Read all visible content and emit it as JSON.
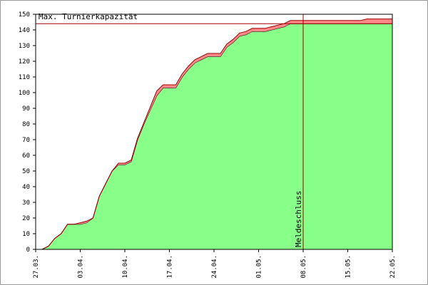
{
  "chart_data": {
    "type": "stacked-area",
    "categories": [
      "27.03.",
      null,
      null,
      null,
      null,
      null,
      null,
      "03.04.",
      null,
      null,
      null,
      null,
      null,
      null,
      "10.04.",
      null,
      null,
      null,
      null,
      null,
      null,
      "17.04.",
      null,
      null,
      null,
      null,
      null,
      null,
      "24.04.",
      null,
      null,
      null,
      null,
      null,
      null,
      "01.05.",
      null,
      null,
      null,
      null,
      null,
      null,
      "08.05.",
      null,
      null,
      null,
      null,
      null,
      null,
      "15.05.",
      null,
      null,
      null,
      null,
      null,
      null,
      "22.05."
    ],
    "series": [
      {
        "color": "#88ff88",
        "line_color": "#000000",
        "values": [
          0,
          0,
          2,
          7,
          10,
          16,
          16,
          16,
          17,
          20,
          34,
          42,
          50,
          54,
          54,
          56,
          70,
          80,
          89,
          98,
          103,
          103,
          103,
          110,
          115,
          119,
          121,
          123,
          123,
          123,
          129,
          132,
          136,
          137,
          139,
          139,
          139,
          140,
          141,
          142,
          144,
          144,
          144,
          144,
          144,
          144,
          144,
          144,
          144,
          144,
          144,
          144,
          144,
          144,
          144,
          144,
          144
        ]
      },
      {
        "color": "#ff8888",
        "line_color": "#a00000",
        "values": [
          0,
          0,
          0,
          0,
          0,
          0,
          0,
          1,
          1,
          0,
          0,
          0,
          0,
          1,
          1,
          1,
          1,
          1,
          2,
          3,
          2,
          2,
          2,
          2,
          2,
          2,
          2,
          2,
          2,
          2,
          2,
          2,
          2,
          2,
          2,
          2,
          2,
          2,
          2,
          2,
          2,
          2,
          2,
          2,
          2,
          2,
          2,
          2,
          2,
          2,
          2,
          2,
          3,
          3,
          3,
          3,
          3
        ]
      }
    ],
    "ylim": [
      0,
      150
    ],
    "yticks": [
      0,
      10,
      20,
      30,
      40,
      50,
      60,
      70,
      80,
      90,
      100,
      110,
      120,
      130,
      140,
      150
    ],
    "capacity": {
      "label": "Max. Turnierkapazität",
      "value": 144,
      "color": "#a00000"
    },
    "deadline": {
      "label": "Meldeschluss",
      "x": "08.05.",
      "color": "#a00000"
    }
  }
}
